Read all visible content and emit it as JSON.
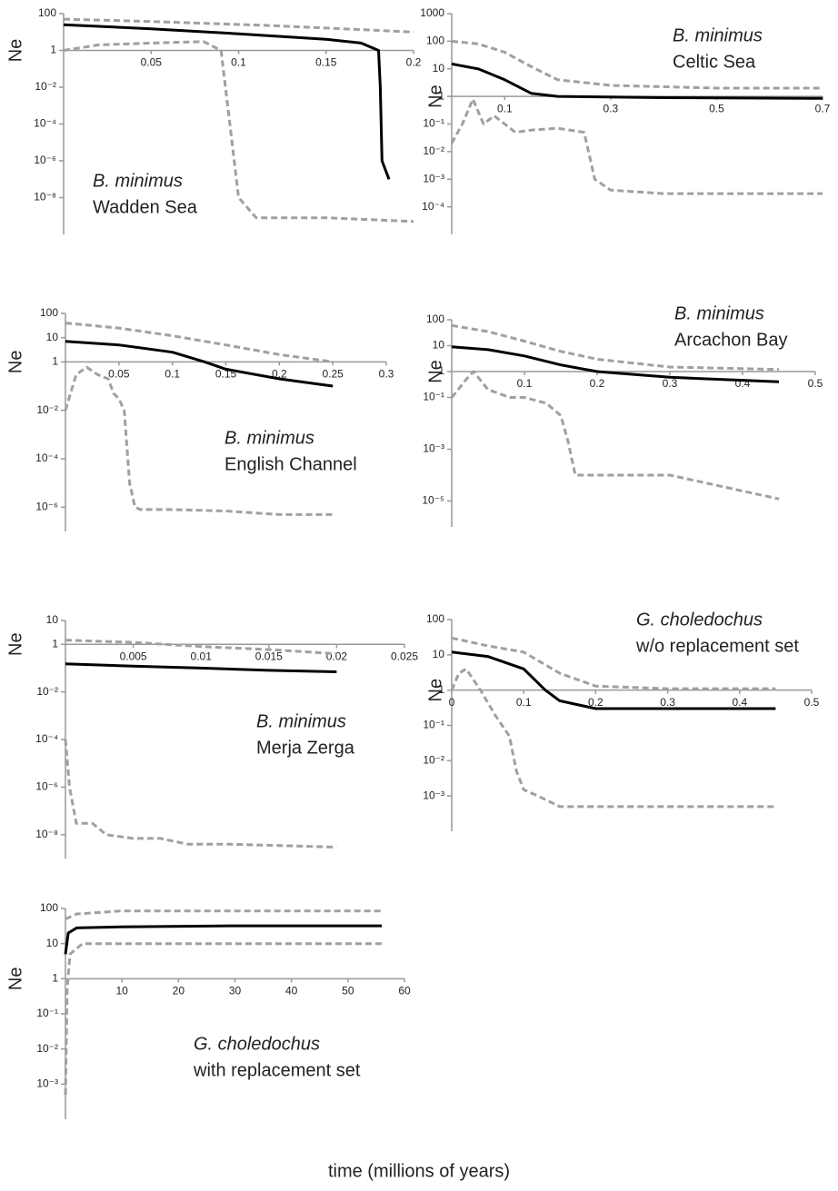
{
  "xlabel": "time (millions of years)",
  "chart_data": [
    {
      "type": "line",
      "log_y": true,
      "ylabel": "Ne",
      "annotation": {
        "species": "B. minimus",
        "location": "Wadden Sea"
      },
      "xlim": [
        0,
        0.2
      ],
      "xticks": [
        0.05,
        0.1,
        0.15,
        0.2
      ],
      "ylim": [
        1e-10,
        100
      ],
      "yticks": [
        100,
        1,
        {
          "value": 0.01,
          "label": "10⁻²"
        },
        {
          "value": 0.0001,
          "label": "10⁻⁴"
        },
        {
          "value": 1e-06,
          "label": "10⁻⁶"
        },
        {
          "value": 1e-08,
          "label": "10⁻⁸"
        }
      ],
      "series": [
        {
          "color": "#a0a0a0",
          "dash": true,
          "x": [
            0,
            0.04,
            0.08,
            0.12,
            0.16,
            0.2
          ],
          "values": [
            50,
            40,
            30,
            22,
            15,
            10
          ]
        },
        {
          "color": "#000000",
          "dash": false,
          "x": [
            0,
            0.05,
            0.1,
            0.15,
            0.17,
            0.18,
            0.181,
            0.182,
            0.186
          ],
          "values": [
            25,
            15,
            8,
            4,
            2.5,
            1,
            0.01,
            1e-06,
            1e-07
          ]
        },
        {
          "color": "#a0a0a0",
          "dash": true,
          "x": [
            0,
            0.02,
            0.05,
            0.08,
            0.09,
            0.095,
            0.1,
            0.11,
            0.15,
            0.2
          ],
          "values": [
            1,
            2,
            2.5,
            3,
            1,
            0.0001,
            1e-08,
            8e-10,
            8e-10,
            5e-10
          ]
        }
      ]
    },
    {
      "type": "line",
      "log_y": true,
      "ylabel": "Ne",
      "annotation": {
        "species": "B. minimus",
        "location": "Celtic Sea"
      },
      "xlim": [
        0,
        0.7
      ],
      "xticks": [
        0.1,
        0.3,
        0.5,
        0.7
      ],
      "ylim": [
        1e-05,
        1000
      ],
      "yticks": [
        1000,
        100,
        10,
        1,
        {
          "value": 0.1,
          "label": "10⁻¹"
        },
        {
          "value": 0.01,
          "label": "10⁻²"
        },
        {
          "value": 0.001,
          "label": "10⁻³"
        },
        {
          "value": 0.0001,
          "label": "10⁻⁴"
        }
      ],
      "series": [
        {
          "color": "#a0a0a0",
          "dash": true,
          "x": [
            0,
            0.05,
            0.1,
            0.15,
            0.2,
            0.3,
            0.5,
            0.7
          ],
          "values": [
            100,
            80,
            40,
            12,
            4,
            2.5,
            2,
            2
          ]
        },
        {
          "color": "#000000",
          "dash": false,
          "x": [
            0,
            0.05,
            0.1,
            0.15,
            0.2,
            0.4,
            0.7
          ],
          "values": [
            15,
            10,
            4,
            1.3,
            1,
            0.9,
            0.85
          ]
        },
        {
          "color": "#a0a0a0",
          "dash": true,
          "x": [
            0,
            0.02,
            0.04,
            0.06,
            0.08,
            0.1,
            0.12,
            0.15,
            0.2,
            0.25,
            0.27,
            0.3,
            0.4,
            0.7
          ],
          "values": [
            0.02,
            0.1,
            0.8,
            0.1,
            0.2,
            0.1,
            0.05,
            0.06,
            0.07,
            0.05,
            0.001,
            0.0004,
            0.0003,
            0.0003
          ]
        }
      ]
    },
    {
      "type": "line",
      "log_y": true,
      "ylabel": "Ne",
      "annotation": {
        "species": "B. minimus",
        "location": "English Channel"
      },
      "xlim": [
        0,
        0.3
      ],
      "xticks": [
        0.05,
        0.1,
        0.15,
        0.2,
        0.25,
        0.3
      ],
      "ylim": [
        1e-07,
        100
      ],
      "yticks": [
        100,
        10,
        1,
        {
          "value": 0.01,
          "label": "10⁻²"
        },
        {
          "value": 0.0001,
          "label": "10⁻⁴"
        },
        {
          "value": 1e-06,
          "label": "10⁻⁶"
        }
      ],
      "series": [
        {
          "color": "#a0a0a0",
          "dash": true,
          "x": [
            0,
            0.05,
            0.1,
            0.15,
            0.2,
            0.25
          ],
          "values": [
            40,
            25,
            12,
            5,
            2,
            1
          ]
        },
        {
          "color": "#000000",
          "dash": false,
          "x": [
            0,
            0.05,
            0.1,
            0.13,
            0.15,
            0.2,
            0.25
          ],
          "values": [
            7,
            5,
            2.5,
            1,
            0.5,
            0.2,
            0.1
          ]
        },
        {
          "color": "#a0a0a0",
          "dash": true,
          "x": [
            0,
            0.01,
            0.02,
            0.03,
            0.04,
            0.045,
            0.05,
            0.055,
            0.06,
            0.065,
            0.07,
            0.1,
            0.15,
            0.2,
            0.25
          ],
          "values": [
            0.01,
            0.3,
            0.6,
            0.3,
            0.2,
            0.05,
            0.03,
            0.01,
            1e-05,
            1e-06,
            8e-07,
            8e-07,
            7e-07,
            5e-07,
            5e-07
          ]
        }
      ]
    },
    {
      "type": "line",
      "log_y": true,
      "ylabel": "Ne",
      "annotation": {
        "species": "B. minimus",
        "location": "Arcachon Bay"
      },
      "xlim": [
        0,
        0.5
      ],
      "xticks": [
        0.1,
        0.2,
        0.3,
        0.4,
        0.5
      ],
      "ylim": [
        1e-06,
        100
      ],
      "yticks": [
        100,
        10,
        1,
        {
          "value": 0.1,
          "label": "10⁻¹"
        },
        {
          "value": 0.001,
          "label": "10⁻³"
        },
        {
          "value": 1e-05,
          "label": "10⁻⁵"
        }
      ],
      "series": [
        {
          "color": "#a0a0a0",
          "dash": true,
          "x": [
            0,
            0.05,
            0.1,
            0.15,
            0.2,
            0.3,
            0.45
          ],
          "values": [
            60,
            35,
            15,
            6,
            3,
            1.5,
            1.2
          ]
        },
        {
          "color": "#000000",
          "dash": false,
          "x": [
            0,
            0.05,
            0.1,
            0.15,
            0.2,
            0.3,
            0.45
          ],
          "values": [
            9,
            7,
            4,
            1.8,
            1,
            0.6,
            0.4
          ]
        },
        {
          "color": "#a0a0a0",
          "dash": true,
          "x": [
            0,
            0.02,
            0.03,
            0.05,
            0.08,
            0.1,
            0.13,
            0.15,
            0.16,
            0.17,
            0.2,
            0.3,
            0.45
          ],
          "values": [
            0.1,
            0.5,
            1,
            0.2,
            0.1,
            0.1,
            0.06,
            0.02,
            0.002,
            0.0001,
            0.0001,
            0.0001,
            1.2e-05
          ]
        }
      ]
    },
    {
      "type": "line",
      "log_y": true,
      "ylabel": "Ne",
      "annotation": {
        "species": "B. minimus",
        "location": "Merja Zerga"
      },
      "xlim": [
        0,
        0.025
      ],
      "xticks": [
        0.005,
        0.01,
        0.015,
        0.02,
        0.025
      ],
      "ylim": [
        1e-09,
        10
      ],
      "yticks": [
        10,
        1,
        {
          "value": 0.01,
          "label": "10⁻²"
        },
        {
          "value": 0.0001,
          "label": "10⁻⁴"
        },
        {
          "value": 1e-06,
          "label": "10⁻⁶"
        },
        {
          "value": 1e-08,
          "label": "10⁻⁸"
        }
      ],
      "series": [
        {
          "color": "#a0a0a0",
          "dash": true,
          "x": [
            0,
            0.005,
            0.01,
            0.015,
            0.02
          ],
          "values": [
            1.5,
            1.2,
            0.8,
            0.6,
            0.4
          ]
        },
        {
          "color": "#000000",
          "dash": false,
          "x": [
            0,
            0.005,
            0.01,
            0.015,
            0.02
          ],
          "values": [
            0.15,
            0.12,
            0.1,
            0.08,
            0.07
          ]
        },
        {
          "color": "#a0a0a0",
          "dash": true,
          "x": [
            0,
            0.0003,
            0.0008,
            0.002,
            0.003,
            0.005,
            0.007,
            0.009,
            0.012,
            0.02
          ],
          "values": [
            0.0001,
            1e-06,
            3e-08,
            3e-08,
            1e-08,
            7e-09,
            7e-09,
            4e-09,
            4e-09,
            3e-09
          ]
        }
      ]
    },
    {
      "type": "line",
      "log_y": true,
      "ylabel": "Ne",
      "annotation": {
        "species": "G. choledochus",
        "location": "w/o replacement set"
      },
      "xlim": [
        0,
        0.5
      ],
      "xticks": [
        0,
        0.1,
        0.2,
        0.3,
        0.4,
        0.5
      ],
      "ylim": [
        0.0001,
        100
      ],
      "yticks": [
        100,
        10,
        1,
        {
          "value": 0.1,
          "label": "10⁻¹"
        },
        {
          "value": 0.01,
          "label": "10⁻²"
        },
        {
          "value": 0.001,
          "label": "10⁻³"
        }
      ],
      "series": [
        {
          "color": "#a0a0a0",
          "dash": true,
          "x": [
            0,
            0.05,
            0.1,
            0.15,
            0.2,
            0.3,
            0.45
          ],
          "values": [
            30,
            18,
            12,
            3,
            1.3,
            1.1,
            1.1
          ]
        },
        {
          "color": "#000000",
          "dash": false,
          "x": [
            0,
            0.05,
            0.1,
            0.13,
            0.15,
            0.2,
            0.3,
            0.45
          ],
          "values": [
            12,
            9,
            4,
            1,
            0.5,
            0.3,
            0.3,
            0.3
          ]
        },
        {
          "color": "#a0a0a0",
          "dash": true,
          "x": [
            0,
            0.01,
            0.02,
            0.04,
            0.06,
            0.08,
            0.09,
            0.1,
            0.12,
            0.15,
            0.45
          ],
          "values": [
            1,
            3,
            4,
            1,
            0.2,
            0.05,
            0.005,
            0.0015,
            0.001,
            0.0005,
            0.0005
          ]
        }
      ]
    },
    {
      "type": "line",
      "log_y": true,
      "ylabel": "Ne",
      "annotation": {
        "species": "G. choledochus",
        "location": "with replacement set"
      },
      "xlim": [
        0,
        60
      ],
      "xticks": [
        10,
        20,
        30,
        40,
        50,
        60
      ],
      "ylim": [
        0.0001,
        100
      ],
      "yticks": [
        100,
        10,
        1,
        {
          "value": 0.1,
          "label": "10⁻¹"
        },
        {
          "value": 0.01,
          "label": "10⁻²"
        },
        {
          "value": 0.001,
          "label": "10⁻³"
        }
      ],
      "series": [
        {
          "color": "#a0a0a0",
          "dash": true,
          "x": [
            0,
            2,
            10,
            30,
            56
          ],
          "values": [
            50,
            70,
            85,
            85,
            85
          ]
        },
        {
          "color": "#000000",
          "dash": false,
          "x": [
            0,
            0.5,
            2,
            10,
            30,
            56
          ],
          "values": [
            5,
            20,
            28,
            30,
            32,
            32
          ]
        },
        {
          "color": "#a0a0a0",
          "dash": true,
          "x": [
            0,
            0.3,
            0.8,
            3,
            10,
            56
          ],
          "values": [
            0.0005,
            0.5,
            5,
            10,
            10,
            10
          ]
        }
      ]
    }
  ]
}
